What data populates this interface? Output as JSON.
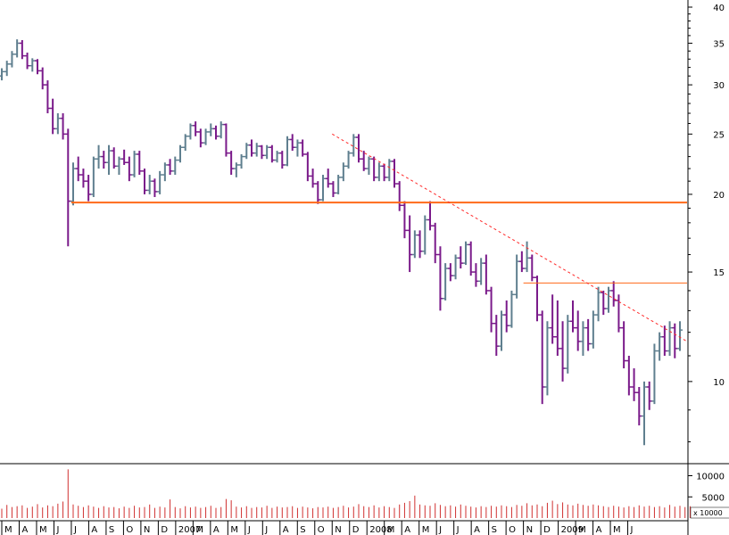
{
  "chart_data": [
    {
      "type": "ohlc",
      "yscale": "log",
      "ylim": [
        7.5,
        40
      ],
      "yticks": [
        10,
        15,
        20,
        25,
        30,
        35,
        40
      ],
      "colors": {
        "up": "#5f7f8f",
        "down": "#7a1a8a",
        "support": "#ff6a1a",
        "resistance": "#ff6a1a",
        "trend": "#ff2a2a",
        "frame": "#000000"
      },
      "x_labels": [
        "M",
        "A",
        "M",
        "J",
        "J",
        "A",
        "S",
        "O",
        "N",
        "D",
        "2007",
        "M",
        "A",
        "M",
        "J",
        "J",
        "A",
        "S",
        "O",
        "N",
        "D",
        "2008",
        "M",
        "A",
        "M",
        "J",
        "J",
        "A",
        "S",
        "O",
        "N",
        "D",
        "2009",
        "M",
        "A",
        "M",
        "J"
      ],
      "x_range": [
        "2006-03",
        "2009-06"
      ],
      "series": [
        {
          "values": [
            [
              31.0,
              31.9,
              30.5,
              31.5
            ],
            [
              31.5,
              32.8,
              31.0,
              32.4
            ],
            [
              32.4,
              34.0,
              32.0,
              33.6
            ],
            [
              33.6,
              35.5,
              33.2,
              35.0
            ],
            [
              35.0,
              35.4,
              33.0,
              33.4
            ],
            [
              33.4,
              33.8,
              31.8,
              32.2
            ],
            [
              32.2,
              33.1,
              31.5,
              32.8
            ],
            [
              32.8,
              33.0,
              31.2,
              31.6
            ],
            [
              31.6,
              32.0,
              29.5,
              30.0
            ],
            [
              30.0,
              30.5,
              27.0,
              27.5
            ],
            [
              27.5,
              28.5,
              25.0,
              25.5
            ],
            [
              25.5,
              27.0,
              25.0,
              26.5
            ],
            [
              26.5,
              27.0,
              24.5,
              25.0
            ],
            [
              25.0,
              25.5,
              16.5,
              19.5
            ],
            [
              19.5,
              22.5,
              19.2,
              22.0
            ],
            [
              22.0,
              23.0,
              21.0,
              21.5
            ],
            [
              21.5,
              22.0,
              20.5,
              21.0
            ],
            [
              21.0,
              21.5,
              19.5,
              20.0
            ],
            [
              20.0,
              23.0,
              19.8,
              22.8
            ],
            [
              22.8,
              24.0,
              22.0,
              23.0
            ],
            [
              23.0,
              23.5,
              22.0,
              22.5
            ],
            [
              22.5,
              24.0,
              21.5,
              23.5
            ],
            [
              23.5,
              23.8,
              22.0,
              22.2
            ],
            [
              22.2,
              23.0,
              21.5,
              22.8
            ],
            [
              22.8,
              23.6,
              22.3,
              22.5
            ],
            [
              22.5,
              23.0,
              21.0,
              21.5
            ],
            [
              21.5,
              23.5,
              21.3,
              23.2
            ],
            [
              23.2,
              23.5,
              21.5,
              21.8
            ],
            [
              21.8,
              22.0,
              20.0,
              20.3
            ],
            [
              20.3,
              21.5,
              20.0,
              21.0
            ],
            [
              21.0,
              21.2,
              19.8,
              20.2
            ],
            [
              20.2,
              21.8,
              20.0,
              21.5
            ],
            [
              21.5,
              22.5,
              21.0,
              22.3
            ],
            [
              22.3,
              22.8,
              21.5,
              21.8
            ],
            [
              21.8,
              23.0,
              21.5,
              22.7
            ],
            [
              22.7,
              24.0,
              22.5,
              23.8
            ],
            [
              23.8,
              25.0,
              23.5,
              24.8
            ],
            [
              24.8,
              26.0,
              24.5,
              25.8
            ],
            [
              25.8,
              26.2,
              24.8,
              25.2
            ],
            [
              25.2,
              25.5,
              23.8,
              24.2
            ],
            [
              24.2,
              25.5,
              24.0,
              25.2
            ],
            [
              25.2,
              26.0,
              24.8,
              25.5
            ],
            [
              25.5,
              25.8,
              24.5,
              24.8
            ],
            [
              24.8,
              26.2,
              24.6,
              25.9
            ],
            [
              25.9,
              26.0,
              23.0,
              23.3
            ],
            [
              23.3,
              23.5,
              21.5,
              22.0
            ],
            [
              22.0,
              22.5,
              21.3,
              22.3
            ],
            [
              22.3,
              23.2,
              22.0,
              23.0
            ],
            [
              23.0,
              24.2,
              22.8,
              24.0
            ],
            [
              24.0,
              24.5,
              23.0,
              23.3
            ],
            [
              23.3,
              24.2,
              23.0,
              23.9
            ],
            [
              23.9,
              24.0,
              22.8,
              23.1
            ],
            [
              23.1,
              24.0,
              22.8,
              23.8
            ],
            [
              23.8,
              24.0,
              22.5,
              22.7
            ],
            [
              22.7,
              23.5,
              22.5,
              23.3
            ],
            [
              23.3,
              23.5,
              22.0,
              22.3
            ],
            [
              22.3,
              24.8,
              22.2,
              24.5
            ],
            [
              24.5,
              25.0,
              23.5,
              23.8
            ],
            [
              23.8,
              24.5,
              23.0,
              24.2
            ],
            [
              24.2,
              24.5,
              23.0,
              23.2
            ],
            [
              23.2,
              23.4,
              21.0,
              21.4
            ],
            [
              21.4,
              22.0,
              20.5,
              20.8
            ],
            [
              20.8,
              21.0,
              19.3,
              19.6
            ],
            [
              19.6,
              21.5,
              19.5,
              21.2
            ],
            [
              21.2,
              22.0,
              20.5,
              20.8
            ],
            [
              20.8,
              21.0,
              19.8,
              20.1
            ],
            [
              20.1,
              21.5,
              20.0,
              21.3
            ],
            [
              21.3,
              22.5,
              21.0,
              22.2
            ],
            [
              22.2,
              23.5,
              22.0,
              23.3
            ],
            [
              23.3,
              25.0,
              23.0,
              24.7
            ],
            [
              24.7,
              25.0,
              22.5,
              22.8
            ],
            [
              22.8,
              23.5,
              21.8,
              22.0
            ],
            [
              22.0,
              23.0,
              21.5,
              22.8
            ],
            [
              22.8,
              23.0,
              21.0,
              21.3
            ],
            [
              21.3,
              22.5,
              21.0,
              22.2
            ],
            [
              22.2,
              22.4,
              21.0,
              21.3
            ],
            [
              21.3,
              22.8,
              21.0,
              22.6
            ],
            [
              22.6,
              22.8,
              20.5,
              20.8
            ],
            [
              20.8,
              21.0,
              18.8,
              19.2
            ],
            [
              19.2,
              19.5,
              17.0,
              17.5
            ],
            [
              17.5,
              18.5,
              15.0,
              16.0
            ],
            [
              16.0,
              17.5,
              15.8,
              17.2
            ],
            [
              17.2,
              17.5,
              15.8,
              16.2
            ],
            [
              16.2,
              18.5,
              16.0,
              18.2
            ],
            [
              18.2,
              19.5,
              17.5,
              17.8
            ],
            [
              17.8,
              18.0,
              15.5,
              16.0
            ],
            [
              16.0,
              16.5,
              13.0,
              13.6
            ],
            [
              13.6,
              15.5,
              13.5,
              15.2
            ],
            [
              15.2,
              15.5,
              14.5,
              14.8
            ],
            [
              14.8,
              16.0,
              14.6,
              15.8
            ],
            [
              15.8,
              16.5,
              15.2,
              15.5
            ],
            [
              15.5,
              16.8,
              15.4,
              16.6
            ],
            [
              16.6,
              16.8,
              14.8,
              15.0
            ],
            [
              15.0,
              15.5,
              14.2,
              14.5
            ],
            [
              14.5,
              15.8,
              14.3,
              15.5
            ],
            [
              15.5,
              16.0,
              13.8,
              14.0
            ],
            [
              14.0,
              14.2,
              12.0,
              12.4
            ],
            [
              12.4,
              12.8,
              11.0,
              11.4
            ],
            [
              11.4,
              13.0,
              11.2,
              12.8
            ],
            [
              12.8,
              13.5,
              12.0,
              12.3
            ],
            [
              12.3,
              14.0,
              12.2,
              13.8
            ],
            [
              13.8,
              16.0,
              13.6,
              15.6
            ],
            [
              15.6,
              16.2,
              15.0,
              15.2
            ],
            [
              15.2,
              16.8,
              15.0,
              15.8
            ],
            [
              15.8,
              16.0,
              14.5,
              14.7
            ],
            [
              14.7,
              14.8,
              12.5,
              12.8
            ],
            [
              12.8,
              13.0,
              9.2,
              9.8
            ],
            [
              9.8,
              12.5,
              9.5,
              12.2
            ],
            [
              12.2,
              13.8,
              11.5,
              11.8
            ],
            [
              11.8,
              13.5,
              11.0,
              11.3
            ],
            [
              11.3,
              12.5,
              10.0,
              10.5
            ],
            [
              10.5,
              12.8,
              10.3,
              12.5
            ],
            [
              12.5,
              13.5,
              12.0,
              12.2
            ],
            [
              12.2,
              13.0,
              11.2,
              11.6
            ],
            [
              11.6,
              12.5,
              11.0,
              12.2
            ],
            [
              12.2,
              12.6,
              11.2,
              11.5
            ],
            [
              11.5,
              13.0,
              11.3,
              12.8
            ],
            [
              12.8,
              14.2,
              12.5,
              13.9
            ],
            [
              13.9,
              14.0,
              12.8,
              13.1
            ],
            [
              13.1,
              14.2,
              12.9,
              14.0
            ],
            [
              14.0,
              14.5,
              13.2,
              13.5
            ],
            [
              13.5,
              13.8,
              12.0,
              12.2
            ],
            [
              12.2,
              12.5,
              10.5,
              10.8
            ],
            [
              10.8,
              11.0,
              9.5,
              9.8
            ],
            [
              9.8,
              10.5,
              9.3,
              9.6
            ],
            [
              9.6,
              9.8,
              8.5,
              8.8
            ],
            [
              8.8,
              10.0,
              7.9,
              9.8
            ],
            [
              9.8,
              10.0,
              9.0,
              9.3
            ],
            [
              9.3,
              11.5,
              9.2,
              11.2
            ],
            [
              11.2,
              12.0,
              10.8,
              11.8
            ],
            [
              11.8,
              12.3,
              11.0,
              11.2
            ],
            [
              11.2,
              12.5,
              11.0,
              12.2
            ],
            [
              12.2,
              12.4,
              10.9,
              11.3
            ],
            [
              11.3,
              12.5,
              11.2,
              12.1
            ]
          ]
        }
      ],
      "lines": [
        {
          "name": "support",
          "style": "solid",
          "from": [
            "2006-07",
            19.4
          ],
          "to": [
            "2009-06",
            19.4
          ]
        },
        {
          "name": "resistance",
          "style": "solid",
          "from": [
            "2008-09",
            14.4
          ],
          "to": [
            "2009-06",
            14.4
          ]
        },
        {
          "name": "downtrend",
          "style": "dashed",
          "from": [
            "2007-10",
            25.0
          ],
          "to": [
            "2009-06",
            11.6
          ]
        }
      ]
    },
    {
      "type": "bar",
      "yticks": [
        "10000",
        "5000"
      ],
      "unit_note": "x 10000",
      "values": [
        2200,
        3100,
        2600,
        2800,
        3000,
        2400,
        2700,
        3300,
        2500,
        3000,
        2800,
        3400,
        3900,
        11500,
        3200,
        2900,
        2600,
        3000,
        2700,
        2400,
        2800,
        2500,
        2600,
        2300,
        2700,
        2400,
        2900,
        2500,
        2600,
        3200,
        2400,
        2700,
        2500,
        4400,
        2600,
        2300,
        2800,
        2500,
        2700,
        2400,
        2600,
        2900,
        2400,
        2600,
        4500,
        4200,
        2700,
        2500,
        2800,
        2400,
        2600,
        2500,
        2900,
        2400,
        2700,
        2500,
        2600,
        2800,
        2400,
        2700,
        2500,
        2300,
        2600,
        2500,
        2700,
        2400,
        2600,
        2900,
        2500,
        2700,
        3300,
        2800,
        2600,
        3000,
        2500,
        2800,
        2600,
        2400,
        3200,
        3600,
        4000,
        5300,
        3200,
        3000,
        2900,
        3500,
        3100,
        2800,
        3000,
        2700,
        3200,
        2900,
        2700,
        2500,
        2800,
        2600,
        2900,
        2700,
        3000,
        2800,
        2600,
        3100,
        2900,
        3500,
        3000,
        3200,
        2800,
        3600,
        4100,
        3300,
        3700,
        3200,
        3000,
        3400,
        3100,
        2900,
        3200,
        3000,
        2800,
        2600,
        2900,
        2700,
        2500,
        2800,
        2600,
        3000,
        2700,
        2900,
        2600,
        2800,
        2500,
        3100,
        2700,
        2900,
        2600,
        2800
      ]
    }
  ]
}
